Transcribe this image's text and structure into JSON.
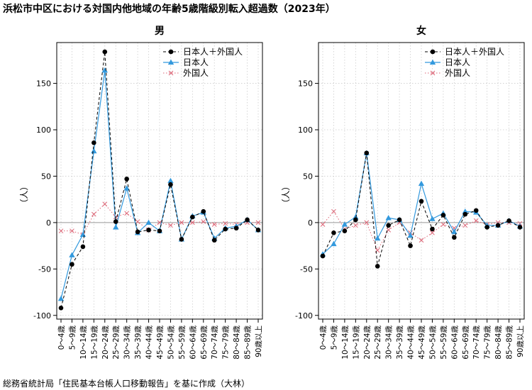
{
  "title": "浜松市中区における対国内他地域の年齢5歳階級別転入超過数（2023年）",
  "source": "総務省統計局「住民基本台帳人口移動報告」を基に作成（大林）",
  "colors": {
    "total": "#000000",
    "japanese": "#3399dd",
    "foreign": "#dd6677",
    "grid": "#cccccc",
    "zero_line": "#999999"
  },
  "chart_data": [
    {
      "type": "line",
      "title": "男",
      "ylabel": "（人）",
      "ylim": [
        -100,
        190
      ],
      "yticks": [
        -100,
        -50,
        0,
        50,
        100,
        150
      ],
      "grid": true,
      "legend": "top-right",
      "categories": [
        "0～4歳",
        "5～9歳",
        "10～14歳",
        "15～19歳",
        "20～24歳",
        "25～29歳",
        "30～34歳",
        "35～39歳",
        "40～44歳",
        "45～49歳",
        "50～54歳",
        "55～59歳",
        "60～64歳",
        "65～69歳",
        "70～74歳",
        "75～79歳",
        "80～84歳",
        "85～89歳",
        "90歳以上"
      ],
      "series": [
        {
          "name": "日本人＋外国人",
          "marker": "circle",
          "line": "dashed",
          "values": [
            -92,
            -45,
            -26,
            86,
            184,
            1,
            47,
            -10,
            -8,
            -9,
            41,
            -18,
            6,
            12,
            -19,
            -7,
            -6,
            3,
            -8
          ]
        },
        {
          "name": "日本人",
          "marker": "triangle",
          "line": "solid",
          "values": [
            -82,
            -35,
            -13,
            77,
            164,
            -5,
            37,
            -11,
            0,
            -9,
            45,
            -18,
            7,
            11,
            -17,
            -6,
            -4,
            3,
            -8
          ]
        },
        {
          "name": "外国人",
          "marker": "cross",
          "line": "dotted",
          "values": [
            -9,
            -9,
            -13,
            9,
            20,
            6,
            10,
            1,
            -8,
            0,
            -3,
            0,
            0,
            1,
            -2,
            -1,
            -2,
            0,
            0
          ]
        }
      ]
    },
    {
      "type": "line",
      "title": "女",
      "ylabel": "（人）",
      "ylim": [
        -100,
        190
      ],
      "yticks": [
        -100,
        -50,
        0,
        50,
        100,
        150
      ],
      "grid": true,
      "legend": "top-right",
      "categories": [
        "0～4歳",
        "5～9歳",
        "10～14歳",
        "15～19歳",
        "20～24歳",
        "25～29歳",
        "30～34歳",
        "35～39歳",
        "40～44歳",
        "45～49歳",
        "50～54歳",
        "55～59歳",
        "60～64歳",
        "65～69歳",
        "70～74歳",
        "75～79歳",
        "80～84歳",
        "85～89歳",
        "90歳以上"
      ],
      "series": [
        {
          "name": "日本人＋外国人",
          "marker": "circle",
          "line": "dashed",
          "values": [
            -36,
            -11,
            -9,
            3,
            75,
            -47,
            -3,
            3,
            -25,
            23,
            -7,
            8,
            -16,
            9,
            13,
            -5,
            -3,
            2,
            -5
          ]
        },
        {
          "name": "日本人",
          "marker": "triangle",
          "line": "solid",
          "values": [
            -34,
            -23,
            -2,
            6,
            75,
            -17,
            5,
            3,
            -14,
            42,
            4,
            10,
            -10,
            12,
            11,
            -3,
            -3,
            2,
            -4
          ]
        },
        {
          "name": "外国人",
          "marker": "cross",
          "line": "dotted",
          "values": [
            -2,
            12,
            -7,
            -3,
            0,
            -30,
            -8,
            0,
            -11,
            -19,
            -11,
            -2,
            -6,
            -3,
            2,
            -2,
            0,
            0,
            -1
          ]
        }
      ]
    }
  ]
}
